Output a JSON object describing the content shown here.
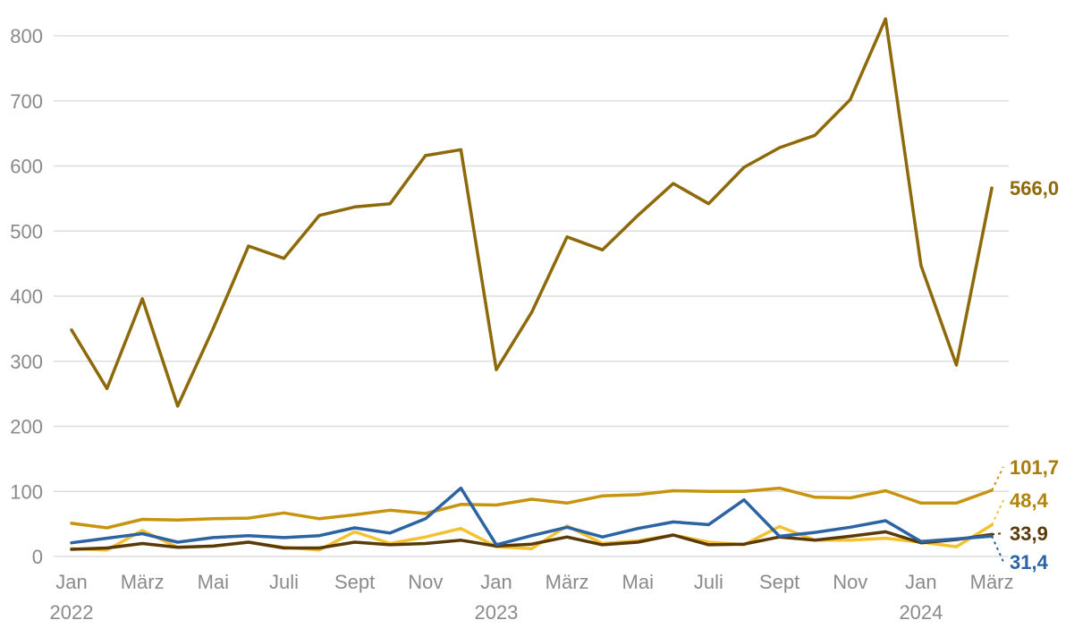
{
  "chart_data": {
    "type": "line",
    "title": "",
    "xlabel": "",
    "ylabel": "",
    "ylim": [
      0,
      800
    ],
    "y_ticks": [
      "0",
      "100",
      "200",
      "300",
      "400",
      "500",
      "600",
      "700",
      "800"
    ],
    "grid": "horizontal",
    "x_tick_labels": [
      {
        "index": 0,
        "label": "Jan",
        "year": "2022"
      },
      {
        "index": 2,
        "label": "März"
      },
      {
        "index": 4,
        "label": "Mai"
      },
      {
        "index": 6,
        "label": "Juli"
      },
      {
        "index": 8,
        "label": "Sept"
      },
      {
        "index": 10,
        "label": "Nov"
      },
      {
        "index": 12,
        "label": "Jan",
        "year": "2023"
      },
      {
        "index": 14,
        "label": "März"
      },
      {
        "index": 16,
        "label": "Mai"
      },
      {
        "index": 18,
        "label": "Juli"
      },
      {
        "index": 20,
        "label": "Sept"
      },
      {
        "index": 22,
        "label": "Nov"
      },
      {
        "index": 24,
        "label": "Jan",
        "year": "2024"
      },
      {
        "index": 26,
        "label": "März"
      }
    ],
    "series": [
      {
        "name": "series-1",
        "color": "#8d6909",
        "label_color": "#8d6909",
        "end_label": "566,0",
        "values": [
          348,
          258,
          396,
          231,
          350,
          477,
          458,
          524,
          537,
          542,
          616,
          625,
          287,
          375,
          491,
          471,
          524,
          573,
          542,
          598,
          628,
          647,
          702,
          826,
          447,
          294,
          566.0
        ]
      },
      {
        "name": "series-2",
        "color": "#c8940f",
        "label_color": "#a87a06",
        "end_label": "101,7",
        "values": [
          51,
          44,
          57,
          56,
          58,
          59,
          67,
          58,
          64,
          71,
          66,
          80,
          79,
          88,
          82,
          93,
          95,
          101,
          100,
          100,
          105,
          91,
          90,
          101,
          82,
          82,
          101.7
        ]
      },
      {
        "name": "series-3",
        "color": "#f4c12f",
        "label_color": "#b08409",
        "end_label": "48,4",
        "values": [
          12,
          10,
          40,
          14,
          16,
          22,
          14,
          10,
          38,
          20,
          30,
          43,
          15,
          12,
          47,
          20,
          24,
          33,
          22,
          18,
          46,
          25,
          25,
          28,
          22,
          15,
          48.4
        ]
      },
      {
        "name": "series-4",
        "color": "#2b63a3",
        "label_color": "#2b63a3",
        "end_label": "31,4",
        "values": [
          21,
          28,
          35,
          22,
          29,
          32,
          29,
          32,
          44,
          36,
          58,
          105,
          18,
          32,
          45,
          30,
          43,
          53,
          49,
          87,
          31,
          37,
          45,
          55,
          23,
          27,
          31.4
        ]
      },
      {
        "name": "series-5",
        "color": "#5a3a08",
        "label_color": "#5a3a08",
        "end_label": "33,9",
        "values": [
          11,
          13,
          20,
          14,
          16,
          22,
          13,
          13,
          22,
          18,
          20,
          25,
          16,
          19,
          30,
          18,
          22,
          33,
          18,
          19,
          30,
          25,
          31,
          38,
          21,
          26,
          33.9
        ]
      }
    ]
  }
}
